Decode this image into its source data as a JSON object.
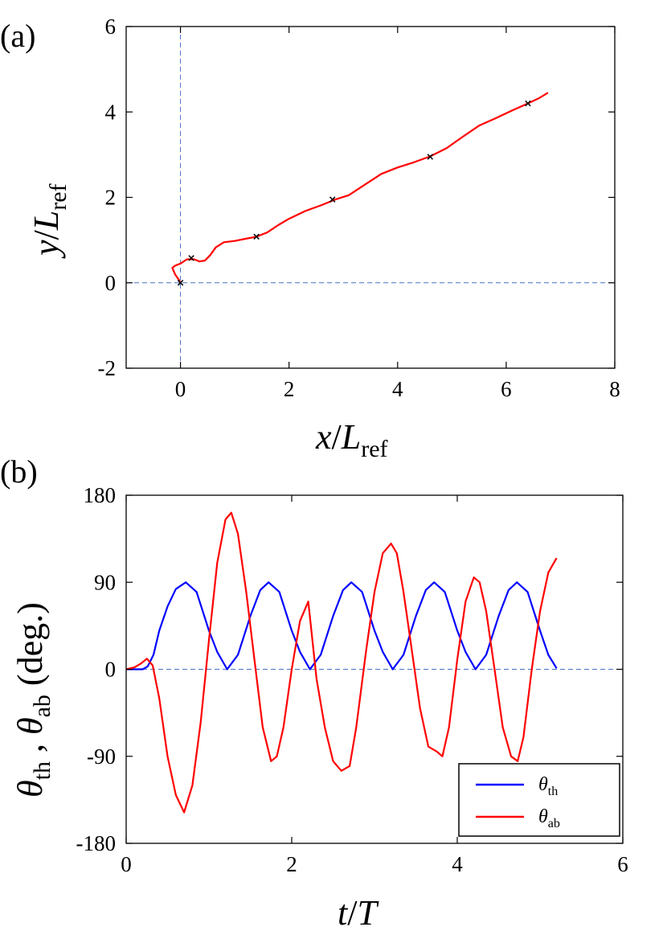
{
  "panels": {
    "a": "(a)",
    "b": "(b)"
  },
  "chart_data": [
    {
      "type": "line",
      "panel": "(a)",
      "xlabel": {
        "var": "x",
        "sep": "/",
        "sym": "L",
        "sub": "ref"
      },
      "ylabel": {
        "var": "y",
        "sep": "/",
        "sym": "L",
        "sub": "ref"
      },
      "xlim": [
        -1,
        8
      ],
      "ylim": [
        -2,
        6
      ],
      "xticks": [
        0,
        2,
        4,
        6,
        8
      ],
      "yticks": [
        -2,
        0,
        2,
        4,
        6
      ],
      "xtick_labels": [
        "0",
        "2",
        "4",
        "6",
        "8"
      ],
      "ytick_labels": [
        "-2",
        "0",
        "2",
        "4",
        "6"
      ],
      "reference_lines": {
        "x": 0,
        "y": 0
      },
      "grid": false,
      "series": [
        {
          "color": "#ff0000",
          "x": [
            0.0,
            0.0,
            -0.03,
            -0.1,
            -0.15,
            -0.1,
            0.0,
            0.12,
            0.25,
            0.35,
            0.45,
            0.55,
            0.65,
            0.8,
            1.0,
            1.2,
            1.4,
            1.6,
            1.8,
            2.0,
            2.3,
            2.6,
            2.85,
            3.1,
            3.4,
            3.7,
            4.0,
            4.3,
            4.6,
            4.9,
            5.2,
            5.5,
            5.8,
            6.1,
            6.4,
            6.6,
            6.77
          ],
          "y": [
            0.0,
            0.0,
            0.07,
            0.2,
            0.35,
            0.4,
            0.45,
            0.55,
            0.55,
            0.5,
            0.52,
            0.65,
            0.83,
            0.95,
            0.98,
            1.03,
            1.08,
            1.18,
            1.35,
            1.5,
            1.68,
            1.82,
            1.95,
            2.05,
            2.3,
            2.55,
            2.7,
            2.82,
            2.96,
            3.15,
            3.42,
            3.68,
            3.85,
            4.03,
            4.2,
            4.32,
            4.45
          ]
        }
      ],
      "markers": {
        "symbol": "x",
        "x": [
          0.0,
          0.2,
          1.4,
          2.8,
          4.6,
          6.4
        ],
        "y": [
          0.0,
          0.58,
          1.08,
          1.95,
          2.95,
          4.2
        ]
      }
    },
    {
      "type": "line",
      "panel": "(b)",
      "xlabel": {
        "var": "t",
        "sep": "/",
        "sym": "T"
      },
      "ylabel": {
        "parts": [
          "θ",
          "th",
          " , ",
          "θ",
          "ab",
          " (deg.)"
        ]
      },
      "xlim": [
        0,
        6
      ],
      "ylim": [
        -180,
        180
      ],
      "xticks": [
        0,
        2,
        4,
        6
      ],
      "yticks": [
        -180,
        -90,
        0,
        90,
        180
      ],
      "xtick_labels": [
        "0",
        "2",
        "4",
        "6"
      ],
      "ytick_labels": [
        "-180",
        "-90",
        "0",
        "90",
        "180"
      ],
      "reference_lines": {
        "y": 0
      },
      "grid": false,
      "legend": {
        "position": "bottom-right"
      },
      "series": [
        {
          "name": "θ",
          "name_sub": "th",
          "color": "#0000ff",
          "x": [
            0.0,
            0.2,
            0.26,
            0.33,
            0.4,
            0.5,
            0.6,
            0.72,
            0.85,
            1.0,
            1.1,
            1.22,
            1.35,
            1.5,
            1.62,
            1.72,
            1.85,
            2.0,
            2.1,
            2.22,
            2.35,
            2.5,
            2.62,
            2.72,
            2.85,
            3.0,
            3.1,
            3.22,
            3.35,
            3.5,
            3.62,
            3.72,
            3.85,
            4.0,
            4.1,
            4.22,
            4.35,
            4.5,
            4.62,
            4.72,
            4.85,
            5.0,
            5.1,
            5.2
          ],
          "y": [
            0,
            0,
            3,
            15,
            40,
            65,
            83,
            90,
            80,
            40,
            18,
            0,
            15,
            55,
            82,
            90,
            80,
            40,
            18,
            0,
            15,
            55,
            82,
            90,
            80,
            40,
            18,
            0,
            15,
            55,
            82,
            90,
            80,
            40,
            18,
            0,
            15,
            55,
            82,
            90,
            80,
            40,
            15,
            1
          ]
        },
        {
          "name": "θ",
          "name_sub": "ab",
          "color": "#ff0000",
          "x": [
            0.0,
            0.1,
            0.18,
            0.25,
            0.32,
            0.4,
            0.5,
            0.6,
            0.7,
            0.8,
            0.9,
            1.0,
            1.1,
            1.2,
            1.27,
            1.35,
            1.45,
            1.55,
            1.65,
            1.75,
            1.82,
            1.9,
            2.0,
            2.1,
            2.2,
            2.3,
            2.4,
            2.5,
            2.6,
            2.7,
            2.78,
            2.9,
            3.0,
            3.1,
            3.2,
            3.27,
            3.35,
            3.45,
            3.55,
            3.65,
            3.75,
            3.82,
            3.9,
            4.0,
            4.1,
            4.2,
            4.27,
            4.35,
            4.45,
            4.55,
            4.65,
            4.73,
            4.8,
            4.9,
            5.0,
            5.1,
            5.2
          ],
          "y": [
            0,
            2,
            6,
            11,
            4,
            -30,
            -90,
            -130,
            -148,
            -120,
            -55,
            30,
            110,
            155,
            162,
            140,
            80,
            10,
            -60,
            -95,
            -90,
            -60,
            0,
            50,
            70,
            -10,
            -60,
            -95,
            -105,
            -100,
            -60,
            20,
            80,
            120,
            130,
            120,
            80,
            20,
            -40,
            -80,
            -85,
            -90,
            -60,
            10,
            70,
            95,
            90,
            60,
            0,
            -60,
            -90,
            -95,
            -70,
            0,
            60,
            100,
            115
          ]
        }
      ]
    }
  ]
}
